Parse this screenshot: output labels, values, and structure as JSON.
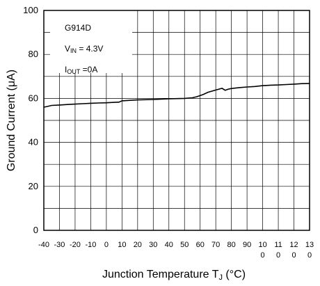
{
  "chart_data": {
    "type": "line",
    "title": "",
    "xlabel": "Junction Temperature T",
    "xlabel_sub": "J",
    "xlabel_unit": " (°C)",
    "ylabel": "Ground Current (μA)",
    "xlim": [
      -40,
      130
    ],
    "ylim": [
      0,
      100
    ],
    "grid": true,
    "legend": "none",
    "x_ticks": [
      {
        "value": -40,
        "lines": [
          "-40"
        ]
      },
      {
        "value": -30,
        "lines": [
          "-30"
        ]
      },
      {
        "value": -20,
        "lines": [
          "-20"
        ]
      },
      {
        "value": -10,
        "lines": [
          "-10"
        ]
      },
      {
        "value": 0,
        "lines": [
          "0"
        ]
      },
      {
        "value": 10,
        "lines": [
          "10"
        ]
      },
      {
        "value": 20,
        "lines": [
          "20"
        ]
      },
      {
        "value": 30,
        "lines": [
          "30"
        ]
      },
      {
        "value": 40,
        "lines": [
          "40"
        ]
      },
      {
        "value": 50,
        "lines": [
          "50"
        ]
      },
      {
        "value": 60,
        "lines": [
          "60"
        ]
      },
      {
        "value": 70,
        "lines": [
          "70"
        ]
      },
      {
        "value": 80,
        "lines": [
          "80"
        ]
      },
      {
        "value": 90,
        "lines": [
          "90"
        ]
      },
      {
        "value": 100,
        "lines": [
          "10",
          "0"
        ]
      },
      {
        "value": 110,
        "lines": [
          "11",
          "0"
        ]
      },
      {
        "value": 120,
        "lines": [
          "12",
          "0"
        ]
      },
      {
        "value": 130,
        "lines": [
          "13",
          "0"
        ]
      }
    ],
    "y_ticks": [
      {
        "value": 0,
        "label": "0"
      },
      {
        "value": 20,
        "label": "20"
      },
      {
        "value": 40,
        "label": "40"
      },
      {
        "value": 60,
        "label": "60"
      },
      {
        "value": 80,
        "label": "80"
      },
      {
        "value": 100,
        "label": "100"
      }
    ],
    "annotation": [
      {
        "main": "G914D",
        "sub": "",
        "rest": ""
      },
      {
        "main": "V",
        "sub": "IN",
        "rest": " = 4.3V"
      },
      {
        "main": "I",
        "sub": "OUT",
        "rest": " =0A"
      }
    ],
    "series": [
      {
        "color": "#000000",
        "x": [
          -40,
          -38,
          -35,
          -30,
          -25,
          -20,
          -15,
          -10,
          -5,
          0,
          5,
          8,
          10,
          15,
          20,
          30,
          40,
          50,
          55,
          58,
          62,
          65,
          70,
          74,
          76,
          78,
          80,
          85,
          90,
          95,
          100,
          105,
          110,
          115,
          120,
          125,
          130
        ],
        "y": [
          56.0,
          56.3,
          56.8,
          57.0,
          57.2,
          57.4,
          57.6,
          57.8,
          57.9,
          58.0,
          58.2,
          58.3,
          58.9,
          59.1,
          59.3,
          59.5,
          59.8,
          60.0,
          60.3,
          60.8,
          61.8,
          62.8,
          63.8,
          64.6,
          63.7,
          64.2,
          64.5,
          64.9,
          65.2,
          65.4,
          65.8,
          66.0,
          66.1,
          66.3,
          66.5,
          66.7,
          66.8
        ]
      }
    ]
  }
}
